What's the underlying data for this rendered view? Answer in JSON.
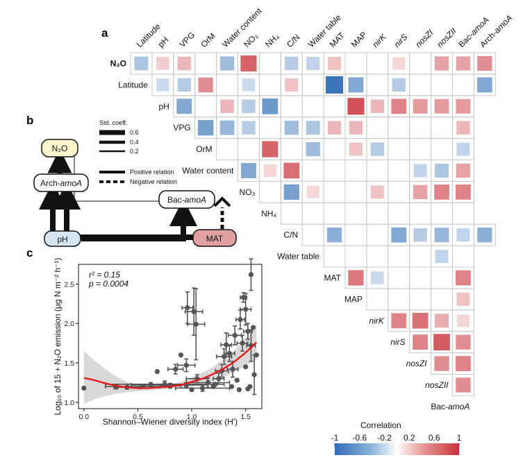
{
  "panels": {
    "a": "a",
    "b": "b",
    "c": "c"
  },
  "correlation_legend": {
    "title": "Correlation",
    "ticks": [
      "-1",
      "-0.6",
      "-0.2",
      "0.2",
      "0.6",
      "1"
    ],
    "range": [
      -1,
      1
    ],
    "colors": [
      "#2f6db5",
      "#ffffff",
      "#c8323a"
    ]
  },
  "path_model": {
    "nodes": {
      "n2o": "N₂O",
      "arch": "Arch-amoA",
      "bac": "Bac-amoA",
      "ph": "pH",
      "mat": "MAT"
    },
    "node_colors": {
      "n2o": "#fbf4cc",
      "ph": "#d5e6f2",
      "mat": "#e1a1a1"
    },
    "legend": {
      "title": "Std. coeff.",
      "widths": [
        "0.6",
        "0.4",
        "0.2"
      ],
      "positive": "Positive relation",
      "negative": "Negative relation"
    },
    "edges": [
      {
        "from": "arch",
        "to": "n2o",
        "coef": 0.6,
        "sign": "positive"
      },
      {
        "from": "bac",
        "to": "n2o",
        "coef": 0.05,
        "sign": "positive"
      },
      {
        "from": "ph",
        "to": "arch",
        "coef": 0.6,
        "sign": "positive"
      },
      {
        "from": "ph",
        "to": "bac",
        "coef": 0.6,
        "sign": "positive"
      },
      {
        "from": "mat",
        "to": "arch",
        "coef": 0.6,
        "sign": "positive"
      },
      {
        "from": "mat",
        "to": "bac",
        "coef": 0.3,
        "sign": "negative"
      }
    ]
  },
  "chart_data": [
    {
      "type": "heatmap",
      "panel": "a",
      "variables": [
        "N2O",
        "Latitude",
        "pH",
        "VPG",
        "OrM",
        "Water content",
        "NO3",
        "NH4",
        "C/N",
        "Water table",
        "MAT",
        "MAP",
        "nirK",
        "nirS",
        "nosZI",
        "nosZII",
        "Bac-amoA",
        "Arch-amoA"
      ],
      "row_labels": [
        "N₂O",
        "Latitude",
        "pH",
        "VPG",
        "OrM",
        "Water content",
        "NO₃",
        "NH₄",
        "C/N",
        "Water table",
        "MAT",
        "MAP",
        "nirK",
        "nirS",
        "nosZI",
        "nosZII",
        "Bac-amoA"
      ],
      "column_labels": [
        "Latitude",
        "pH",
        "VPG",
        "OrM",
        "Water content",
        "NO₃",
        "NH₄",
        "C/N",
        "Water table",
        "MAT",
        "MAP",
        "nirK",
        "nirS",
        "nosZI",
        "nosZII",
        "Bac-amoA",
        "Arch-amoA"
      ],
      "italic_labels": [
        "nirK",
        "nirS",
        "nosZI",
        "nosZII"
      ],
      "amoa_labels": [
        "Bac-amoA",
        "Arch-amoA"
      ],
      "value_range": [
        -1,
        1
      ],
      "correlations": [
        [
          -0.4,
          0.25,
          0.35,
          0,
          -0.45,
          0.75,
          0,
          -0.35,
          -0.3,
          0.3,
          0,
          0,
          0.2,
          0,
          0.45,
          0.45,
          0.55
        ],
        [
          -0.25,
          -0.35,
          0.55,
          0,
          -0.25,
          0,
          0.3,
          0,
          -0.95,
          -0.6,
          0,
          -0.35,
          0,
          0,
          0,
          -0.6
        ],
        [
          -0.6,
          0,
          0.35,
          -0.35,
          -0.7,
          0,
          0,
          0,
          0.85,
          0.35,
          0.6,
          0.5,
          0.5,
          0.5
        ],
        [
          -0.65,
          -0.5,
          -0.35,
          0,
          -0.45,
          -0.4,
          0.35,
          0.35,
          0,
          0,
          0,
          0,
          0.35
        ],
        [
          0,
          0,
          0.75,
          0,
          -0.45,
          0,
          0.3,
          -0.35,
          0,
          0,
          0,
          -0.3
        ],
        [
          -0.6,
          0.2,
          0.7,
          0,
          0,
          0,
          0,
          0,
          -0.3,
          -0.4,
          0.45
        ],
        [
          0,
          -0.65,
          0.2,
          0,
          0,
          0.3,
          0,
          0.45,
          0.6,
          0.6
        ],
        [
          0,
          0,
          0,
          0,
          0,
          0,
          0,
          0,
          0
        ],
        [
          0,
          -0.55,
          0,
          0,
          -0.6,
          -0.35,
          -0.5,
          -0.3,
          -0.55
        ],
        [
          0,
          0,
          0,
          0,
          0,
          -0.3,
          0
        ],
        [
          0.65,
          -0.25,
          0,
          0,
          0,
          0.6
        ],
        [
          0,
          0,
          0,
          0,
          0.3
        ],
        [
          0.6,
          0.7,
          0.4,
          0.2
        ],
        [
          0.6,
          0.8,
          0.55
        ],
        [
          0.55,
          0.6
        ],
        [
          0.55
        ]
      ]
    },
    {
      "type": "scatter",
      "panel": "c",
      "xlabel": "Shannon–Wiener diversity index (H')",
      "ylabel": "Log₁₀ of 15 + N₂O emission (μg N m⁻² h⁻¹)",
      "xlim": [
        -0.05,
        1.65
      ],
      "ylim": [
        0.92,
        2.75
      ],
      "xticks": [
        "0.0",
        "0.5",
        "1.0",
        "1.5"
      ],
      "yticks": [
        "1.0",
        "1.5",
        "2.0",
        "2.5"
      ],
      "r2": "0.15",
      "p": "0.0004",
      "stat_lines": {
        "r2": "r² = 0.15",
        "p": "p = 0.0004"
      },
      "fit_color": "#e41a1c",
      "fit": {
        "x": [
          0.0,
          0.1,
          0.2,
          0.3,
          0.4,
          0.5,
          0.6,
          0.7,
          0.8,
          0.9,
          1.0,
          1.1,
          1.2,
          1.3,
          1.4,
          1.5,
          1.6
        ],
        "y": [
          1.31,
          1.28,
          1.24,
          1.21,
          1.19,
          1.18,
          1.18,
          1.19,
          1.2,
          1.22,
          1.26,
          1.3,
          1.36,
          1.43,
          1.52,
          1.63,
          1.76
        ]
      },
      "ci_lower": [
        0.98,
        1.04,
        1.08,
        1.11,
        1.13,
        1.14,
        1.15,
        1.16,
        1.17,
        1.18,
        1.2,
        1.23,
        1.27,
        1.32,
        1.39,
        1.46,
        1.54
      ],
      "ci_upper": [
        1.65,
        1.53,
        1.42,
        1.33,
        1.26,
        1.22,
        1.21,
        1.22,
        1.23,
        1.26,
        1.32,
        1.38,
        1.45,
        1.55,
        1.66,
        1.82,
        1.99
      ],
      "points": [
        {
          "x": 0.0,
          "y": 1.18
        },
        {
          "x": 0.75,
          "y": 1.23,
          "xerr": 0.55,
          "yerr": 0.04
        },
        {
          "x": 0.3,
          "y": 1.2,
          "xerr": 0.1,
          "yerr": 0.03
        },
        {
          "x": 0.4,
          "y": 1.19,
          "xerr": 0.12,
          "yerr": 0.02
        },
        {
          "x": 0.55,
          "y": 1.2,
          "xerr": 0.15,
          "yerr": 0.02
        },
        {
          "x": 0.62,
          "y": 1.22,
          "xerr": 0.18,
          "yerr": 0.03
        },
        {
          "x": 0.68,
          "y": 1.39
        },
        {
          "x": 0.8,
          "y": 1.21,
          "xerr": 0.1,
          "yerr": 0.03
        },
        {
          "x": 0.85,
          "y": 1.42,
          "xerr": 0.07,
          "yerr": 0.06
        },
        {
          "x": 0.9,
          "y": 1.6
        },
        {
          "x": 0.95,
          "y": 1.47,
          "xerr": 0.08,
          "yerr": 0.08
        },
        {
          "x": 0.95,
          "y": 1.22,
          "xerr": 0.2,
          "yerr": 0.03
        },
        {
          "x": 0.96,
          "y": 2.2,
          "xerr": 0.05,
          "yerr": 0.2
        },
        {
          "x": 1.0,
          "y": 1.16
        },
        {
          "x": 1.02,
          "y": 2.15,
          "xerr": 0.08,
          "yerr": 0.3
        },
        {
          "x": 1.04,
          "y": 1.99,
          "xerr": 0.08,
          "yerr": 0.45
        },
        {
          "x": 1.05,
          "y": 1.3,
          "xerr": 0.1,
          "yerr": 0.05
        },
        {
          "x": 1.1,
          "y": 1.18,
          "xerr": 0.25,
          "yerr": 0.04
        },
        {
          "x": 1.15,
          "y": 1.25,
          "xerr": 0.2,
          "yerr": 0.06
        },
        {
          "x": 1.2,
          "y": 1.2
        },
        {
          "x": 1.22,
          "y": 1.23
        },
        {
          "x": 1.25,
          "y": 1.3,
          "xerr": 0.05,
          "yerr": 0.07
        },
        {
          "x": 1.28,
          "y": 1.4,
          "xerr": 0.06,
          "yerr": 0.08
        },
        {
          "x": 1.3,
          "y": 1.58,
          "xerr": 0.07,
          "yerr": 0.1
        },
        {
          "x": 1.32,
          "y": 1.73,
          "xerr": 0.05,
          "yerr": 0.15
        },
        {
          "x": 1.35,
          "y": 1.62,
          "xerr": 0.05,
          "yerr": 0.1
        },
        {
          "x": 1.37,
          "y": 1.2
        },
        {
          "x": 1.38,
          "y": 1.42,
          "xerr": 0.05,
          "yerr": 0.1
        },
        {
          "x": 1.4,
          "y": 1.85,
          "xerr": 0.06,
          "yerr": 0.12
        },
        {
          "x": 1.42,
          "y": 1.28
        },
        {
          "x": 1.44,
          "y": 1.16
        },
        {
          "x": 1.45,
          "y": 2.05,
          "xerr": 0.04,
          "yerr": 0.12
        },
        {
          "x": 1.47,
          "y": 1.75,
          "xerr": 0.05,
          "yerr": 0.1
        },
        {
          "x": 1.48,
          "y": 2.33,
          "xerr": 0.03,
          "yerr": 0.06
        },
        {
          "x": 1.5,
          "y": 2.18,
          "xerr": 0.05,
          "yerr": 0.2
        },
        {
          "x": 1.5,
          "y": 1.45
        },
        {
          "x": 1.52,
          "y": 1.9,
          "xerr": 0.04,
          "yerr": 0.1
        },
        {
          "x": 1.52,
          "y": 1.17
        },
        {
          "x": 1.54,
          "y": 1.2
        },
        {
          "x": 1.55,
          "y": 1.72,
          "xerr": 0.04,
          "yerr": 0.2
        },
        {
          "x": 1.55,
          "y": 2.62,
          "yerr": 0.2
        },
        {
          "x": 1.57,
          "y": 1.95
        },
        {
          "x": 1.58,
          "y": 1.35,
          "yerr": 0.25
        },
        {
          "x": 1.6,
          "y": 1.6
        }
      ]
    }
  ]
}
